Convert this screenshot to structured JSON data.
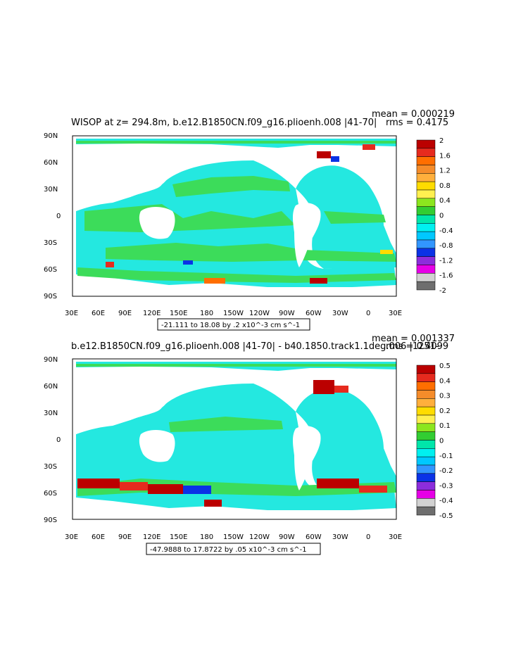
{
  "panels": [
    {
      "title": "WISOP at z= 294.8m, b.e12.B1850CN.f09_g16.plioenh.008 |41-70|",
      "stats": {
        "mean": "mean = 0.000219",
        "rms": "rms = 0.4175"
      },
      "range_note": "-21.111 to 18.08 by .2 x10^-3 cm s^-1",
      "colorbar_labels": [
        "2",
        "1.6",
        "1.2",
        "0.8",
        "0.4",
        "0",
        "-0.4",
        "-0.8",
        "-1.2",
        "-1.6",
        "-2"
      ]
    },
    {
      "title": "b.e12.B1850CN.f09_g16.plioenh.008 |41-70| - b40.1850.track1.1deg.006 |1251-",
      "stats": {
        "mean": "mean = 0.001337",
        "rms": "rms = 0.4099"
      },
      "range_note": "-47.9888 to 17.8722 by .05 x10^-3 cm s^-1",
      "colorbar_labels": [
        "0.5",
        "0.4",
        "0.3",
        "0.2",
        "0.1",
        "0",
        "-0.1",
        "-0.2",
        "-0.3",
        "-0.4",
        "-0.5"
      ]
    }
  ],
  "lat_labels": [
    "90N",
    "60N",
    "30N",
    "0",
    "30S",
    "60S",
    "90S"
  ],
  "lon_labels": [
    "30E",
    "60E",
    "90E",
    "120E",
    "150E",
    "180",
    "150W",
    "120W",
    "90W",
    "60W",
    "30W",
    "0",
    "30E"
  ],
  "colors": {
    "colorbar": [
      "#bb0000",
      "#e62a1e",
      "#ff6e00",
      "#f58c2a",
      "#ffaf3c",
      "#ffdc00",
      "#fff050",
      "#8ce61e",
      "#32cd32",
      "#00e6aa",
      "#00f0f0",
      "#00c8ff",
      "#3296ff",
      "#0a32e6",
      "#8c2ddc",
      "#e600e6",
      "#d2d2d2",
      "#6e6e6e"
    ],
    "ocean_main": "#24e8e0",
    "ocean_green": "#3cdc5a",
    "land": "#ffffff"
  }
}
